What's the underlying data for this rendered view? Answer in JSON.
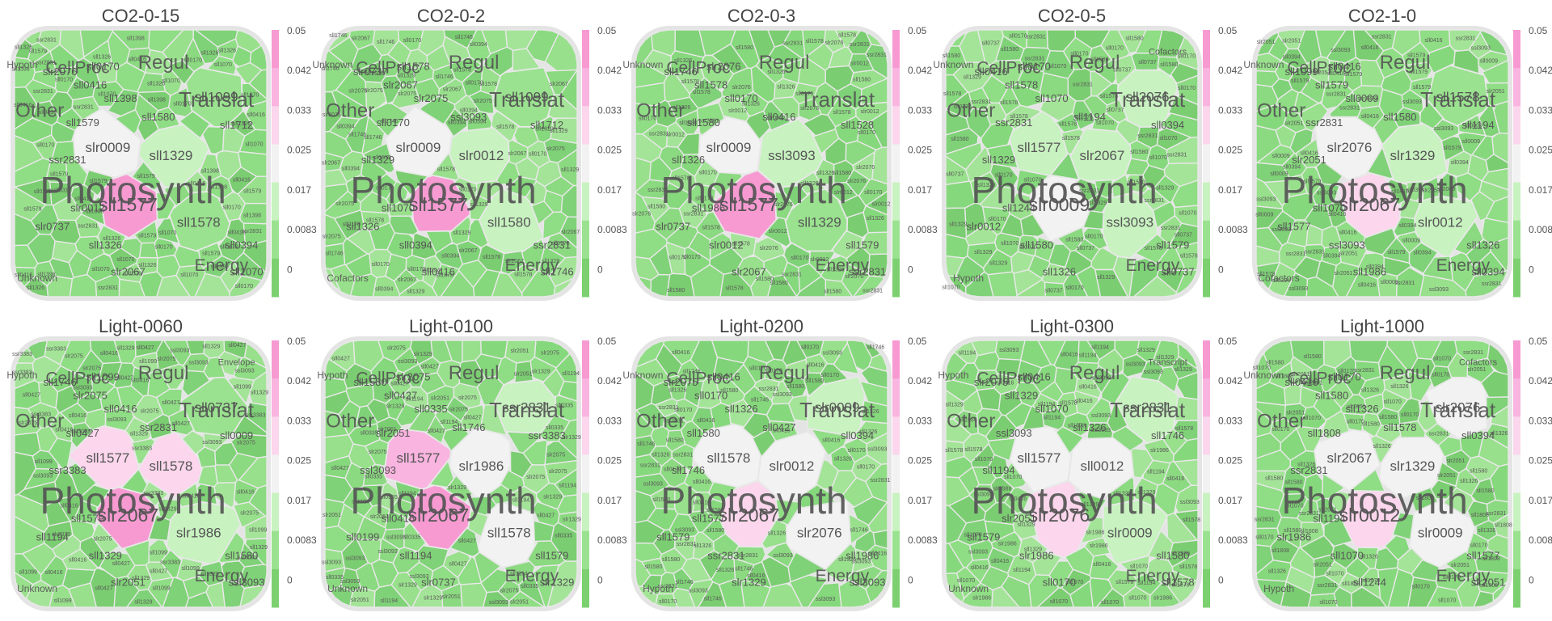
{
  "chart_data": {
    "type": "voronoi-treemap",
    "colorbar": {
      "ticks": [
        "0.05",
        "0.042",
        "0.033",
        "0.025",
        "0.017",
        "0.0083",
        "0"
      ],
      "colors": [
        "#f79ad2",
        "#f9b4df",
        "#fbd6ec",
        "#f2f2f2",
        "#c8f2c0",
        "#9ae28f",
        "#7cd070"
      ]
    },
    "panels": [
      {
        "title": "CO2-0-15",
        "highlights": [
          {
            "label": "sll1577",
            "value": 0.05
          },
          {
            "label": "slr0009",
            "value": 0.027
          },
          {
            "label": "sll1329",
            "value": 0.017
          },
          {
            "label": "sll1578",
            "value": 0.012
          },
          {
            "label": "sll1099",
            "value": 0.01
          }
        ],
        "categories": [
          "Photosynth",
          "Other",
          "CellProc",
          "Regul",
          "Translat",
          "Energy",
          "Hypoth",
          "Unknown"
        ],
        "genes": [
          "sll0170",
          "slr2076",
          "sll0416",
          "sll1580",
          "ssr2831",
          "slr0737",
          "sll1326",
          "slr2067",
          "sll1579",
          "sll0394",
          "sll1070",
          "slr0012",
          "sll1398",
          "sll1712"
        ]
      },
      {
        "title": "CO2-0-2",
        "highlights": [
          {
            "label": "sll1577",
            "value": 0.045
          },
          {
            "label": "slr0009",
            "value": 0.026
          },
          {
            "label": "slr0012",
            "value": 0.02
          },
          {
            "label": "sll1580",
            "value": 0.015
          },
          {
            "label": "sll1099",
            "value": 0.012
          }
        ],
        "categories": [
          "Photosynth",
          "Other",
          "CellProc",
          "Regul",
          "Translat",
          "Energy",
          "Unknown",
          "Cofactors"
        ],
        "genes": [
          "sll1578",
          "slr0737",
          "slr2067",
          "ssl3093",
          "sll1329",
          "sll1326",
          "sll0394",
          "sll0416",
          "sll0170",
          "ssr2831",
          "sll1746",
          "sll1070",
          "slr2075",
          "sll1712"
        ]
      },
      {
        "title": "CO2-0-3",
        "highlights": [
          {
            "label": "sll1577",
            "value": 0.05
          },
          {
            "label": "slr0009",
            "value": 0.022
          },
          {
            "label": "ssl3093",
            "value": 0.015
          },
          {
            "label": "sll1329",
            "value": 0.012
          }
        ],
        "categories": [
          "Photosynth",
          "Other",
          "CellProc",
          "Regul",
          "Translat",
          "Energy",
          "Unknown"
        ],
        "genes": [
          "slr2076",
          "sll1746",
          "sll1578",
          "sll0416",
          "sll1326",
          "slr0737",
          "slr0012",
          "slr2067",
          "sll1580",
          "sll1579",
          "ssr2831",
          "sll1986",
          "sll0170",
          "sll1528"
        ]
      },
      {
        "title": "CO2-0-5",
        "highlights": [
          {
            "label": "slr0009",
            "value": 0.022
          },
          {
            "label": "sll1577",
            "value": 0.02
          },
          {
            "label": "slr2067",
            "value": 0.02
          },
          {
            "label": "ssl3093",
            "value": 0.016
          },
          {
            "label": "sll2076",
            "value": 0.02
          }
        ],
        "categories": [
          "Photosynth",
          "Other",
          "CellProc",
          "Regul",
          "Translat",
          "Energy",
          "Unknown",
          "Hypoth",
          "Cofactors"
        ],
        "genes": [
          "sll0170",
          "sll0416",
          "sll1578",
          "sll1194",
          "sll1329",
          "slr0012",
          "sll1580",
          "sll1326",
          "ssr2831",
          "sll1579",
          "sll0737",
          "sll1244",
          "sll1070",
          "sll0394"
        ]
      },
      {
        "title": "CO2-1-0",
        "highlights": [
          {
            "label": "slr2067",
            "value": 0.03
          },
          {
            "label": "slr2076",
            "value": 0.026
          },
          {
            "label": "slr1329",
            "value": 0.017
          },
          {
            "label": "slr0012",
            "value": 0.018
          },
          {
            "label": "sll1578",
            "value": 0.012
          }
        ],
        "categories": [
          "Photosynth",
          "Other",
          "CellProc",
          "Regul",
          "Translat",
          "Energy",
          "Unknown",
          "Cofactors"
        ],
        "genes": [
          "sll0416",
          "sll1099",
          "sll1579",
          "sll1580",
          "slr2051",
          "sll1577",
          "ssl3093",
          "sll1986",
          "ssr2831",
          "sll1326",
          "sll0394",
          "sll1070",
          "sll0009",
          "sll1194"
        ]
      },
      {
        "title": "Light-0060",
        "highlights": [
          {
            "label": "slr2067",
            "value": 0.05
          },
          {
            "label": "sll1577",
            "value": 0.035
          },
          {
            "label": "sll1578",
            "value": 0.03
          },
          {
            "label": "slr1986",
            "value": 0.02
          },
          {
            "label": "sll0737",
            "value": 0.014
          }
        ],
        "categories": [
          "Photosynth",
          "Other",
          "CellProc",
          "Regul",
          "Translat",
          "Energy",
          "Hypoth",
          "Unknown",
          "Envelope"
        ],
        "genes": [
          "sll1099",
          "sll1746",
          "slr2075",
          "ssr2831",
          "ssr3383",
          "sll1194",
          "sll1329",
          "slr2051",
          "sll0427",
          "sll1580",
          "ssl3093",
          "sll1579",
          "sll0416",
          "sll0009"
        ]
      },
      {
        "title": "Light-0100",
        "highlights": [
          {
            "label": "slr2067",
            "value": 0.05
          },
          {
            "label": "sll1577",
            "value": 0.04
          },
          {
            "label": "slr1986",
            "value": 0.022
          },
          {
            "label": "sll1578",
            "value": 0.028
          },
          {
            "label": "ssr2831",
            "value": 0.015
          }
        ],
        "categories": [
          "Photosynth",
          "Other",
          "CellProc",
          "Regul",
          "Translat",
          "Energy",
          "Hypoth",
          "Unknown"
        ],
        "genes": [
          "slr2075",
          "sll1580",
          "sll0427",
          "sll1746",
          "ssl3093",
          "sll0199",
          "sll1194",
          "slr0737",
          "slr2051",
          "sll1579",
          "slr1329",
          "sll0416",
          "sll0335",
          "ssr3383"
        ]
      },
      {
        "title": "Light-0200",
        "highlights": [
          {
            "label": "slr2067",
            "value": 0.03
          },
          {
            "label": "sll1578",
            "value": 0.025
          },
          {
            "label": "slr0012",
            "value": 0.024
          },
          {
            "label": "slr2076",
            "value": 0.022
          },
          {
            "label": "slr0009",
            "value": 0.018
          }
        ],
        "categories": [
          "Photosynth",
          "Other",
          "CellProc",
          "Regul",
          "Translat",
          "Energy",
          "Unknown",
          "Hypoth"
        ],
        "genes": [
          "sll0416",
          "slr2075",
          "sll0170",
          "sll0427",
          "sll1746",
          "sll1579",
          "ssr2831",
          "slr1329",
          "sll1580",
          "sll1986",
          "ssl3093",
          "sll1577",
          "sll1326",
          "sll0394"
        ]
      },
      {
        "title": "Light-0300",
        "highlights": [
          {
            "label": "slr2076",
            "value": 0.03
          },
          {
            "label": "sll1577",
            "value": 0.028
          },
          {
            "label": "sll0012",
            "value": 0.025
          },
          {
            "label": "slr0009",
            "value": 0.02
          },
          {
            "label": "ssr2831",
            "value": 0.018
          }
        ],
        "categories": [
          "Photosynth",
          "Other",
          "CellProc",
          "Regul",
          "Translat",
          "Energy",
          "Hypoth",
          "Unknown",
          "Transcript"
        ],
        "genes": [
          "sll0416",
          "slr2075",
          "sll1329",
          "sll1326",
          "sll1194",
          "sll1579",
          "slr1986",
          "sll0170",
          "ssl3093",
          "sll1580",
          "sll1578",
          "slr2051",
          "sll1070",
          "sll1746"
        ]
      },
      {
        "title": "Light-1000",
        "highlights": [
          {
            "label": "slr0012",
            "value": 0.03
          },
          {
            "label": "slr2067",
            "value": 0.028
          },
          {
            "label": "slr1329",
            "value": 0.026
          },
          {
            "label": "slr0009",
            "value": 0.025
          },
          {
            "label": "slr2076",
            "value": 0.022
          }
        ],
        "categories": [
          "Photosynth",
          "Other",
          "CellProc",
          "Regul",
          "Translat",
          "Energy",
          "Unknown",
          "Hypoth",
          "Cofactors"
        ],
        "genes": [
          "sll0170",
          "sll0416",
          "sll1580",
          "sll1578",
          "ssr2831",
          "slr1986",
          "sll1070",
          "sll1244",
          "sll1808",
          "sll1577",
          "slr2051",
          "sll1194",
          "sll1326",
          "sll0394"
        ]
      }
    ]
  }
}
